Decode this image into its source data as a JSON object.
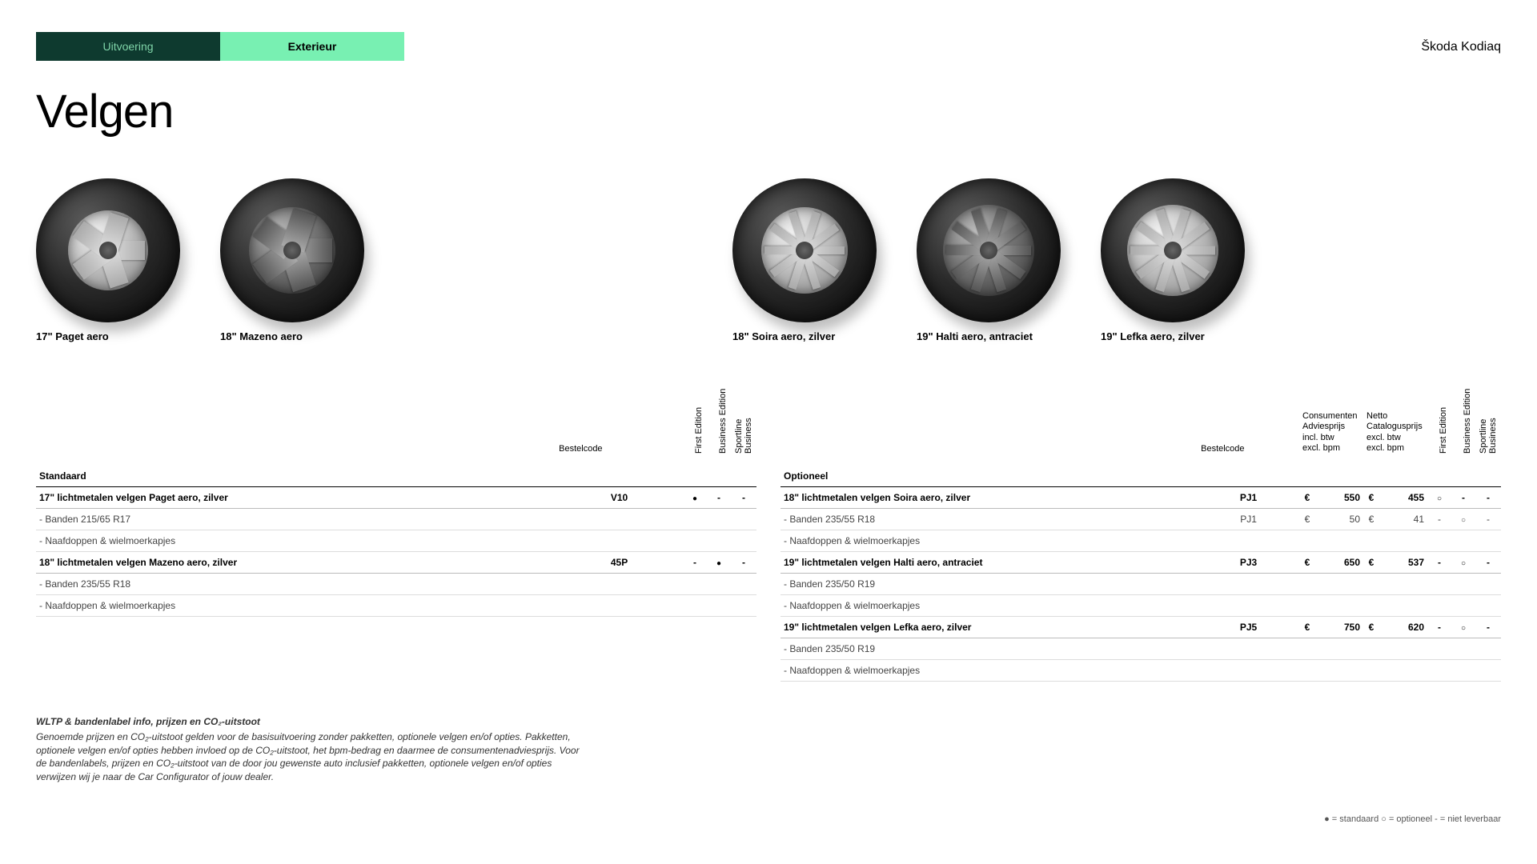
{
  "tabs": {
    "uitvoering": "Uitvoering",
    "exterieur": "Exterieur"
  },
  "brand": "Škoda Kodiaq",
  "title": "Velgen",
  "wheels": [
    {
      "label": "17\" Paget aero",
      "rim_size": 100,
      "spokes": 5,
      "spoke_w": 24,
      "dark": false
    },
    {
      "label": "18\" Mazeno aero",
      "rim_size": 108,
      "spokes": 5,
      "spoke_w": 30,
      "dark": true
    },
    {
      "label": "18\" Soira aero, zilver",
      "rim_size": 108,
      "spokes": 10,
      "spoke_w": 10,
      "dark": false
    },
    {
      "label": "19\" Halti aero, antraciet",
      "rim_size": 114,
      "spokes": 10,
      "spoke_w": 12,
      "dark": true
    },
    {
      "label": "19\" Lefka aero, zilver",
      "rim_size": 114,
      "spokes": 10,
      "spoke_w": 11,
      "dark": false
    }
  ],
  "table_left": {
    "headers": {
      "bestelcode": "Bestelcode",
      "cols": [
        "First Edition",
        "Business Edition",
        "Sportline Business"
      ]
    },
    "section": "Standaard",
    "rows": [
      {
        "type": "main",
        "name": "17\" lichtmetalen velgen Paget aero, zilver",
        "code": "V10",
        "vals": [
          "filled",
          "dash",
          "dash"
        ]
      },
      {
        "type": "sub",
        "name": "- Banden 215/65 R17"
      },
      {
        "type": "sub",
        "name": "- Naafdoppen & wielmoerkapjes"
      },
      {
        "type": "main",
        "name": "18\" lichtmetalen velgen Mazeno aero, zilver",
        "code": "45P",
        "vals": [
          "dash",
          "filled",
          "dash"
        ]
      },
      {
        "type": "sub",
        "name": "- Banden 235/55 R18"
      },
      {
        "type": "sub",
        "name": "- Naafdoppen & wielmoerkapjes"
      }
    ]
  },
  "table_right": {
    "headers": {
      "bestelcode": "Bestelcode",
      "price1_l1": "Consumenten",
      "price1_l2": "Adviesprijs",
      "price1_l3": "incl. btw",
      "price1_l4": "excl. bpm",
      "price2_l1": "Netto",
      "price2_l2": "Catalogusprijs",
      "price2_l3": "excl. btw",
      "price2_l4": "excl. bpm",
      "cols": [
        "First Edition",
        "Business Edition",
        "Sportline Business"
      ]
    },
    "section": "Optioneel",
    "rows": [
      {
        "type": "main",
        "name": "18\" lichtmetalen velgen Soira aero, zilver",
        "code": "PJ1",
        "cur1": "€",
        "p1": "550",
        "cur2": "€",
        "p2": "455",
        "vals": [
          "open",
          "dash",
          "dash"
        ]
      },
      {
        "type": "main",
        "name": "- Banden 235/55 R18",
        "sub": true,
        "code": "PJ1",
        "cur1": "€",
        "p1": "50",
        "cur2": "€",
        "p2": "41",
        "vals": [
          "dash",
          "open",
          "dash"
        ]
      },
      {
        "type": "sub",
        "name": "- Naafdoppen & wielmoerkapjes"
      },
      {
        "type": "main",
        "name": "19\" lichtmetalen velgen Halti aero, antraciet",
        "code": "PJ3",
        "cur1": "€",
        "p1": "650",
        "cur2": "€",
        "p2": "537",
        "vals": [
          "dash",
          "open",
          "dash"
        ]
      },
      {
        "type": "sub",
        "name": "- Banden 235/50 R19"
      },
      {
        "type": "sub",
        "name": "- Naafdoppen & wielmoerkapjes"
      },
      {
        "type": "main",
        "name": "19\" lichtmetalen velgen Lefka aero, zilver",
        "code": "PJ5",
        "cur1": "€",
        "p1": "750",
        "cur2": "€",
        "p2": "620",
        "vals": [
          "dash",
          "open",
          "dash"
        ]
      },
      {
        "type": "sub",
        "name": "- Banden 235/50 R19"
      },
      {
        "type": "sub",
        "name": "- Naafdoppen & wielmoerkapjes"
      }
    ]
  },
  "footnote": {
    "title": "WLTP & bandenlabel info, prijzen en CO₂-uitstoot",
    "body": "Genoemde prijzen en CO₂-uitstoot gelden voor de basisuitvoering zonder pakketten, optionele velgen en/of opties. Pakketten, optionele velgen en/of opties hebben invloed op de CO₂-uitstoot, het bpm-bedrag en daarmee de consumentenadviesprijs. Voor de bandenlabels, prijzen en CO₂-uitstoot van de door jou gewenste auto inclusief pakketten, optionele velgen en/of opties verwijzen wij je naar de Car Configurator of jouw dealer."
  },
  "legend": "● = standaard   ○ = optioneel   - = niet leverbaar"
}
